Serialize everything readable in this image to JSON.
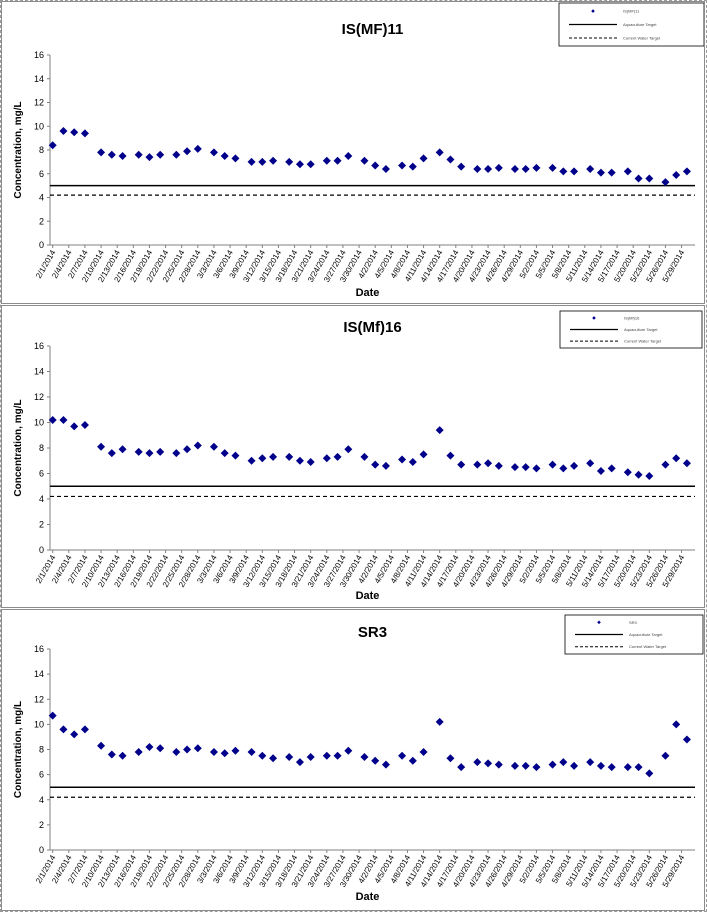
{
  "chart_data": [
    {
      "type": "scatter",
      "title": "IS(MF)11",
      "xlabel": "Date",
      "ylabel": "Concentration, mg/L",
      "ylim": [
        0,
        16
      ],
      "yticks": [
        "0",
        "2",
        "4",
        "6",
        "8",
        "10",
        "12",
        "14",
        "16"
      ],
      "xticks": [
        "2/1/2014",
        "2/4/2014",
        "2/7/2014",
        "2/10/2014",
        "2/13/2014",
        "2/16/2014",
        "2/19/2014",
        "2/22/2014",
        "2/25/2014",
        "2/28/2014",
        "3/3/2014",
        "3/6/2014",
        "3/9/2014",
        "3/12/2014",
        "3/15/2014",
        "3/18/2014",
        "3/21/2014",
        "3/24/2014",
        "3/27/2014",
        "3/30/2014",
        "4/2/2014",
        "4/5/2014",
        "4/8/2014",
        "4/11/2014",
        "4/14/2014",
        "4/17/2014",
        "4/20/2014",
        "4/23/2014",
        "4/26/2014",
        "4/29/2014",
        "5/2/2014",
        "5/5/2014",
        "5/8/2014",
        "5/11/2014",
        "5/14/2014",
        "5/17/2014",
        "5/20/2014",
        "5/23/2014",
        "5/26/2014",
        "5/29/2014"
      ],
      "legend_position": "top-right",
      "legend": [
        "IS(MF)11",
        "Aquaculture Target",
        "Current Water Target"
      ],
      "lines": [
        {
          "name": "Aquaculture Target",
          "y": 5.0,
          "style": "solid"
        },
        {
          "name": "Current Water Target",
          "y": 4.2,
          "style": "dashed"
        }
      ],
      "x": [
        "2/1/2014",
        "2/2/2014",
        "2/3/2014",
        "2/4/2014",
        "2/5/2014",
        "2/6/2014",
        "2/7/2014",
        "2/8/2014",
        "2/9/2014",
        "2/10/2014",
        "2/11/2014",
        "2/12/2014",
        "2/13/2014",
        "2/14/2014",
        "2/15/2014",
        "2/16/2014",
        "2/17/2014",
        "2/18/2014",
        "2/19/2014",
        "2/20/2014",
        "2/21/2014",
        "2/22/2014",
        "2/23/2014",
        "2/24/2014",
        "2/25/2014",
        "2/26/2014",
        "2/27/2014",
        "2/28/2014",
        "3/1/2014",
        "3/2/2014",
        "3/3/2014",
        "3/4/2014",
        "3/5/2014",
        "3/6/2014",
        "3/7/2014",
        "3/8/2014",
        "3/9/2014",
        "3/10/2014",
        "3/11/2014",
        "3/12/2014",
        "3/13/2014",
        "3/14/2014",
        "3/15/2014",
        "3/16/2014",
        "3/17/2014",
        "3/18/2014",
        "3/19/2014",
        "3/20/2014",
        "3/21/2014",
        "3/22/2014",
        "3/23/2014",
        "3/24/2014",
        "3/25/2014",
        "3/26/2014",
        "3/27/2014",
        "3/28/2014",
        "3/29/2014",
        "3/30/2014",
        "3/31/2014",
        "4/1/2014",
        "4/2/2014",
        "4/3/2014",
        "4/4/2014",
        "4/5/2014",
        "4/6/2014",
        "4/7/2014",
        "4/8/2014",
        "4/9/2014",
        "4/10/2014",
        "4/11/2014",
        "4/12/2014",
        "4/13/2014",
        "4/14/2014",
        "4/15/2014",
        "4/16/2014",
        "4/17/2014",
        "4/18/2014",
        "4/19/2014",
        "4/20/2014",
        "4/21/2014",
        "4/22/2014",
        "4/23/2014",
        "4/24/2014",
        "4/25/2014",
        "4/26/2014",
        "4/27/2014",
        "4/28/2014",
        "4/29/2014",
        "4/30/2014",
        "5/1/2014",
        "5/2/2014",
        "5/3/2014",
        "5/4/2014",
        "5/5/2014",
        "5/6/2014",
        "5/7/2014",
        "5/8/2014",
        "5/9/2014",
        "5/10/2014",
        "5/11/2014",
        "5/12/2014",
        "5/13/2014",
        "5/14/2014",
        "5/15/2014",
        "5/16/2014",
        "5/17/2014",
        "5/18/2014",
        "5/19/2014",
        "5/20/2014",
        "5/21/2014",
        "5/22/2014",
        "5/23/2014",
        "5/24/2014",
        "5/25/2014",
        "5/26/2014",
        "5/27/2014",
        "5/28/2014",
        "5/29/2014",
        "5/30/2014",
        "5/31/2014"
      ],
      "series": [
        {
          "values": [
            8.4,
            null,
            9.6,
            null,
            9.5,
            null,
            9.4,
            null,
            null,
            7.8,
            null,
            7.6,
            null,
            7.5,
            null,
            null,
            7.6,
            null,
            7.4,
            null,
            7.6,
            null,
            null,
            7.6,
            null,
            7.9,
            null,
            8.1,
            null,
            null,
            7.8,
            null,
            7.5,
            null,
            7.3,
            null,
            null,
            7.0,
            null,
            7.0,
            null,
            7.1,
            null,
            null,
            7.0,
            null,
            6.8,
            null,
            6.8,
            null,
            null,
            7.1,
            null,
            7.1,
            null,
            7.5,
            null,
            null,
            7.1,
            null,
            6.7,
            null,
            6.4,
            null,
            null,
            6.7,
            null,
            6.6,
            null,
            7.3,
            null,
            null,
            7.8,
            null,
            7.2,
            null,
            6.6,
            null,
            null,
            6.4,
            null,
            6.4,
            null,
            6.5,
            null,
            null,
            6.4,
            null,
            6.4,
            null,
            6.5,
            null,
            null,
            6.5,
            null,
            6.2,
            null,
            6.2,
            null,
            null,
            6.4,
            null,
            6.1,
            null,
            6.1,
            null,
            null,
            6.2,
            null,
            5.6,
            null,
            5.6,
            null,
            null,
            5.3,
            null,
            5.9,
            null,
            6.2,
            null
          ]
        }
      ]
    },
    {
      "type": "scatter",
      "title": "IS(Mf)16",
      "xlabel": "Date",
      "ylabel": "Concentration, mg/L",
      "ylim": [
        0,
        16
      ],
      "yticks": [
        "0",
        "2",
        "4",
        "6",
        "8",
        "10",
        "12",
        "14",
        "16"
      ],
      "xticks": [
        "2/1/2014",
        "2/4/2014",
        "2/7/2014",
        "2/10/2014",
        "2/13/2014",
        "2/16/2014",
        "2/19/2014",
        "2/22/2014",
        "2/25/2014",
        "2/28/2014",
        "3/3/2014",
        "3/6/2014",
        "3/9/2014",
        "3/12/2014",
        "3/15/2014",
        "3/18/2014",
        "3/21/2014",
        "3/24/2014",
        "3/27/2014",
        "3/30/2014",
        "4/2/2014",
        "4/5/2014",
        "4/8/2014",
        "4/11/2014",
        "4/14/2014",
        "4/17/2014",
        "4/20/2014",
        "4/23/2014",
        "4/26/2014",
        "4/29/2014",
        "5/2/2014",
        "5/5/2014",
        "5/8/2014",
        "5/11/2014",
        "5/14/2014",
        "5/17/2014",
        "5/20/2014",
        "5/23/2014",
        "5/26/2014",
        "5/29/2014"
      ],
      "legend_position": "top-right",
      "legend": [
        "IS(Mf)16",
        "Aquaculture Target",
        "Current Water Target"
      ],
      "lines": [
        {
          "name": "Aquaculture Target",
          "y": 5.0,
          "style": "solid"
        },
        {
          "name": "Current Water Target",
          "y": 4.2,
          "style": "dashed"
        }
      ],
      "x": [
        "2/1/2014",
        "2/2/2014",
        "2/3/2014",
        "2/4/2014",
        "2/5/2014",
        "2/6/2014",
        "2/7/2014",
        "2/8/2014",
        "2/9/2014",
        "2/10/2014",
        "2/11/2014",
        "2/12/2014",
        "2/13/2014",
        "2/14/2014",
        "2/15/2014",
        "2/16/2014",
        "2/17/2014",
        "2/18/2014",
        "2/19/2014",
        "2/20/2014",
        "2/21/2014",
        "2/22/2014",
        "2/23/2014",
        "2/24/2014",
        "2/25/2014",
        "2/26/2014",
        "2/27/2014",
        "2/28/2014",
        "3/1/2014",
        "3/2/2014",
        "3/3/2014",
        "3/4/2014",
        "3/5/2014",
        "3/6/2014",
        "3/7/2014",
        "3/8/2014",
        "3/9/2014",
        "3/10/2014",
        "3/11/2014",
        "3/12/2014",
        "3/13/2014",
        "3/14/2014",
        "3/15/2014",
        "3/16/2014",
        "3/17/2014",
        "3/18/2014",
        "3/19/2014",
        "3/20/2014",
        "3/21/2014",
        "3/22/2014",
        "3/23/2014",
        "3/24/2014",
        "3/25/2014",
        "3/26/2014",
        "3/27/2014",
        "3/28/2014",
        "3/29/2014",
        "3/30/2014",
        "3/31/2014",
        "4/1/2014",
        "4/2/2014",
        "4/3/2014",
        "4/4/2014",
        "4/5/2014",
        "4/6/2014",
        "4/7/2014",
        "4/8/2014",
        "4/9/2014",
        "4/10/2014",
        "4/11/2014",
        "4/12/2014",
        "4/13/2014",
        "4/14/2014",
        "4/15/2014",
        "4/16/2014",
        "4/17/2014",
        "4/18/2014",
        "4/19/2014",
        "4/20/2014",
        "4/21/2014",
        "4/22/2014",
        "4/23/2014",
        "4/24/2014",
        "4/25/2014",
        "4/26/2014",
        "4/27/2014",
        "4/28/2014",
        "4/29/2014",
        "4/30/2014",
        "5/1/2014",
        "5/2/2014",
        "5/3/2014",
        "5/4/2014",
        "5/5/2014",
        "5/6/2014",
        "5/7/2014",
        "5/8/2014",
        "5/9/2014",
        "5/10/2014",
        "5/11/2014",
        "5/12/2014",
        "5/13/2014",
        "5/14/2014",
        "5/15/2014",
        "5/16/2014",
        "5/17/2014",
        "5/18/2014",
        "5/19/2014",
        "5/20/2014",
        "5/21/2014",
        "5/22/2014",
        "5/23/2014",
        "5/24/2014",
        "5/25/2014",
        "5/26/2014",
        "5/27/2014",
        "5/28/2014",
        "5/29/2014",
        "5/30/2014",
        "5/31/2014"
      ],
      "series": [
        {
          "values": [
            10.2,
            null,
            10.2,
            null,
            9.7,
            null,
            9.8,
            null,
            null,
            8.1,
            null,
            7.6,
            null,
            7.9,
            null,
            null,
            7.7,
            null,
            7.6,
            null,
            7.7,
            null,
            null,
            7.6,
            null,
            7.9,
            null,
            8.2,
            null,
            null,
            8.1,
            null,
            7.6,
            null,
            7.4,
            null,
            null,
            7.0,
            null,
            7.2,
            null,
            7.3,
            null,
            null,
            7.3,
            null,
            7.0,
            null,
            6.9,
            null,
            null,
            7.2,
            null,
            7.3,
            null,
            7.9,
            null,
            null,
            7.3,
            null,
            6.7,
            null,
            6.6,
            null,
            null,
            7.1,
            null,
            6.9,
            null,
            7.5,
            null,
            null,
            9.4,
            null,
            7.4,
            null,
            6.7,
            null,
            null,
            6.7,
            null,
            6.8,
            null,
            6.6,
            null,
            null,
            6.5,
            null,
            6.5,
            null,
            6.4,
            null,
            null,
            6.7,
            null,
            6.4,
            null,
            6.6,
            null,
            null,
            6.8,
            null,
            6.2,
            null,
            6.4,
            null,
            null,
            6.1,
            null,
            5.9,
            null,
            5.8,
            null,
            null,
            6.7,
            null,
            7.2,
            null,
            6.8,
            null
          ]
        }
      ]
    },
    {
      "type": "scatter",
      "title": "SR3",
      "xlabel": "Date",
      "ylabel": "Concentration, mg/L",
      "ylim": [
        0,
        16
      ],
      "yticks": [
        "0",
        "2",
        "4",
        "6",
        "8",
        "10",
        "12",
        "14",
        "16"
      ],
      "xticks": [
        "2/1/2014",
        "2/4/2014",
        "2/7/2014",
        "2/10/2014",
        "2/13/2014",
        "2/16/2014",
        "2/19/2014",
        "2/22/2014",
        "2/25/2014",
        "2/28/2014",
        "3/3/2014",
        "3/6/2014",
        "3/9/2014",
        "3/12/2014",
        "3/15/2014",
        "3/18/2014",
        "3/21/2014",
        "3/24/2014",
        "3/27/2014",
        "3/30/2014",
        "4/2/2014",
        "4/5/2014",
        "4/8/2014",
        "4/11/2014",
        "4/14/2014",
        "4/17/2014",
        "4/20/2014",
        "4/23/2014",
        "4/26/2014",
        "4/29/2014",
        "5/2/2014",
        "5/5/2014",
        "5/8/2014",
        "5/11/2014",
        "5/14/2014",
        "5/17/2014",
        "5/20/2014",
        "5/23/2014",
        "5/26/2014",
        "5/29/2014"
      ],
      "legend_position": "top-right",
      "legend": [
        "SR3",
        "Aquaculture Target",
        "Current Water Target"
      ],
      "lines": [
        {
          "name": "Aquaculture Target",
          "y": 5.0,
          "style": "solid"
        },
        {
          "name": "Current Water Target",
          "y": 4.2,
          "style": "dashed"
        }
      ],
      "x": [
        "2/1/2014",
        "2/2/2014",
        "2/3/2014",
        "2/4/2014",
        "2/5/2014",
        "2/6/2014",
        "2/7/2014",
        "2/8/2014",
        "2/9/2014",
        "2/10/2014",
        "2/11/2014",
        "2/12/2014",
        "2/13/2014",
        "2/14/2014",
        "2/15/2014",
        "2/16/2014",
        "2/17/2014",
        "2/18/2014",
        "2/19/2014",
        "2/20/2014",
        "2/21/2014",
        "2/22/2014",
        "2/23/2014",
        "2/24/2014",
        "2/25/2014",
        "2/26/2014",
        "2/27/2014",
        "2/28/2014",
        "3/1/2014",
        "3/2/2014",
        "3/3/2014",
        "3/4/2014",
        "3/5/2014",
        "3/6/2014",
        "3/7/2014",
        "3/8/2014",
        "3/9/2014",
        "3/10/2014",
        "3/11/2014",
        "3/12/2014",
        "3/13/2014",
        "3/14/2014",
        "3/15/2014",
        "3/16/2014",
        "3/17/2014",
        "3/18/2014",
        "3/19/2014",
        "3/20/2014",
        "3/21/2014",
        "3/22/2014",
        "3/23/2014",
        "3/24/2014",
        "3/25/2014",
        "3/26/2014",
        "3/27/2014",
        "3/28/2014",
        "3/29/2014",
        "3/30/2014",
        "3/31/2014",
        "4/1/2014",
        "4/2/2014",
        "4/3/2014",
        "4/4/2014",
        "4/5/2014",
        "4/6/2014",
        "4/7/2014",
        "4/8/2014",
        "4/9/2014",
        "4/10/2014",
        "4/11/2014",
        "4/12/2014",
        "4/13/2014",
        "4/14/2014",
        "4/15/2014",
        "4/16/2014",
        "4/17/2014",
        "4/18/2014",
        "4/19/2014",
        "4/20/2014",
        "4/21/2014",
        "4/22/2014",
        "4/23/2014",
        "4/24/2014",
        "4/25/2014",
        "4/26/2014",
        "4/27/2014",
        "4/28/2014",
        "4/29/2014",
        "4/30/2014",
        "5/1/2014",
        "5/2/2014",
        "5/3/2014",
        "5/4/2014",
        "5/5/2014",
        "5/6/2014",
        "5/7/2014",
        "5/8/2014",
        "5/9/2014",
        "5/10/2014",
        "5/11/2014",
        "5/12/2014",
        "5/13/2014",
        "5/14/2014",
        "5/15/2014",
        "5/16/2014",
        "5/17/2014",
        "5/18/2014",
        "5/19/2014",
        "5/20/2014",
        "5/21/2014",
        "5/22/2014",
        "5/23/2014",
        "5/24/2014",
        "5/25/2014",
        "5/26/2014",
        "5/27/2014",
        "5/28/2014",
        "5/29/2014",
        "5/30/2014",
        "5/31/2014"
      ],
      "series": [
        {
          "values": [
            10.7,
            null,
            9.6,
            null,
            9.2,
            null,
            9.6,
            null,
            null,
            8.3,
            null,
            7.6,
            null,
            7.5,
            null,
            null,
            7.8,
            null,
            8.2,
            null,
            8.1,
            null,
            null,
            7.8,
            null,
            8.0,
            null,
            8.1,
            null,
            null,
            7.8,
            null,
            7.7,
            null,
            7.9,
            null,
            null,
            7.8,
            null,
            7.5,
            null,
            7.3,
            null,
            null,
            7.4,
            null,
            7.0,
            null,
            7.4,
            null,
            null,
            7.5,
            null,
            7.5,
            null,
            7.9,
            null,
            null,
            7.4,
            null,
            7.1,
            null,
            6.8,
            null,
            null,
            7.5,
            null,
            7.1,
            null,
            7.8,
            null,
            null,
            10.2,
            null,
            7.3,
            null,
            6.6,
            null,
            null,
            7.0,
            null,
            6.9,
            null,
            6.8,
            null,
            null,
            6.7,
            null,
            6.7,
            null,
            6.6,
            null,
            null,
            6.8,
            null,
            7.0,
            null,
            6.7,
            null,
            null,
            7.0,
            null,
            6.7,
            null,
            6.6,
            null,
            null,
            6.6,
            null,
            6.6,
            null,
            6.1,
            null,
            null,
            7.5,
            null,
            10.0,
            null,
            8.8,
            null
          ]
        }
      ]
    }
  ],
  "colors": {
    "marker": "#00008b",
    "target": "#000000",
    "text": "#000000"
  }
}
